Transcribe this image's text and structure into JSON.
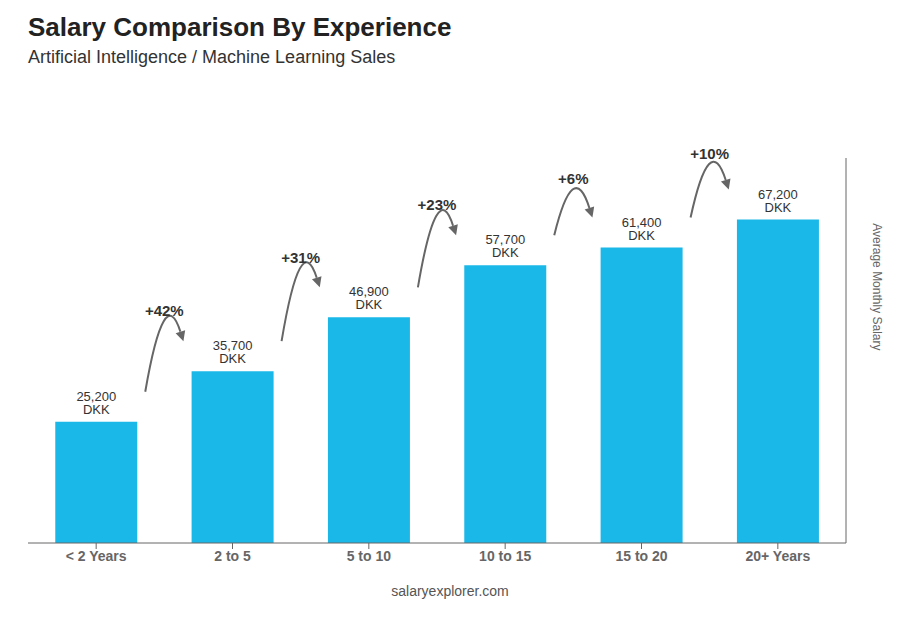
{
  "chart_data": {
    "type": "bar",
    "title": "Salary Comparison By Experience",
    "subtitle": "Artificial Intelligence / Machine Learning Sales",
    "ylabel": "Average Monthly Salary",
    "footer": "salaryexplorer.com",
    "categories": [
      "< 2 Years",
      "2 to 5",
      "5 to 10",
      "10 to 15",
      "15 to 20",
      "20+ Years"
    ],
    "values": [
      25200,
      35700,
      46900,
      57700,
      61400,
      67200
    ],
    "value_labels": [
      "25,200 DKK",
      "35,700 DKK",
      "46,900 DKK",
      "57,700 DKK",
      "61,400 DKK",
      "67,200 DKK"
    ],
    "data_labels": true,
    "color": "#1ab8e8",
    "ylim": [
      0,
      80000
    ],
    "tick_labels": "x",
    "grid": false,
    "annotations": [
      {
        "text": "+42%",
        "from": "< 2 Years",
        "to": "2 to 5"
      },
      {
        "text": "+31%",
        "from": "2 to 5",
        "to": "5 to 10"
      },
      {
        "text": "+23%",
        "from": "5 to 10",
        "to": "10 to 15"
      },
      {
        "text": "+6%",
        "from": "10 to 15",
        "to": "15 to 20"
      },
      {
        "text": "+10%",
        "from": "15 to 20",
        "to": "20+ Years"
      }
    ]
  }
}
